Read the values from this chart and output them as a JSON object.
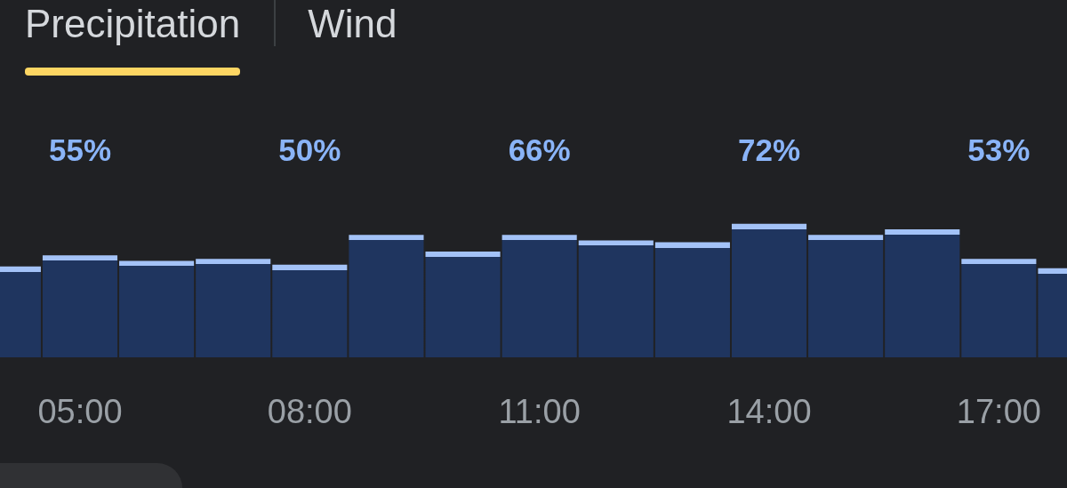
{
  "chart_data": {
    "type": "bar",
    "title": "Precipitation",
    "annotations": [
      "Wind"
    ],
    "categories": [
      null,
      "05:00",
      null,
      null,
      "08:00",
      null,
      null,
      "11:00",
      null,
      null,
      "14:00",
      null,
      null,
      "17:00",
      null
    ],
    "values": [
      49,
      55,
      52,
      53,
      50,
      66,
      57,
      66,
      63,
      62,
      72,
      66,
      69,
      53,
      48
    ],
    "value_labels": [
      null,
      "55%",
      null,
      null,
      "50%",
      null,
      null,
      "66%",
      null,
      null,
      "72%",
      null,
      null,
      "53%",
      null
    ],
    "color": "#1f355f",
    "tick_labels": "x"
  }
}
